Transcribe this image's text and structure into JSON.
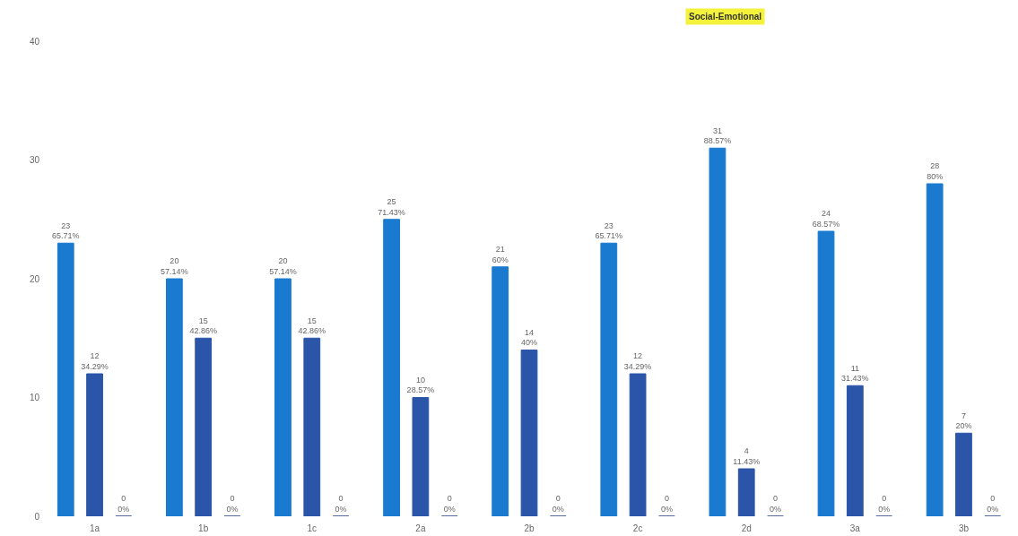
{
  "chart_data": {
    "type": "bar",
    "title": "Social-Emotional",
    "categories": [
      "1a",
      "1b",
      "1c",
      "2a",
      "2b",
      "2c",
      "2d",
      "3a",
      "3b"
    ],
    "series": [
      {
        "color": "#1a7ad0",
        "values": [
          23,
          20,
          20,
          25,
          21,
          23,
          31,
          24,
          28
        ],
        "value_labels": [
          "23\n65.71%",
          "20\n57.14%",
          "20\n57.14%",
          "25\n71.43%",
          "21\n60%",
          "23\n65.71%",
          "31\n88.57%",
          "24\n68.57%",
          "28\n80%"
        ]
      },
      {
        "color": "#2b55a8",
        "values": [
          12,
          15,
          15,
          10,
          14,
          12,
          4,
          11,
          7
        ],
        "value_labels": [
          "12\n34.29%",
          "15\n42.86%",
          "15\n42.86%",
          "10\n28.57%",
          "14\n40%",
          "12\n34.29%",
          "4\n11.43%",
          "11\n31.43%",
          "7\n20%"
        ]
      },
      {
        "color": "#1f3d7a",
        "values": [
          0,
          0,
          0,
          0,
          0,
          0,
          0,
          0,
          0
        ],
        "value_labels": [
          "0\n0%",
          "0\n0%",
          "0\n0%",
          "0\n0%",
          "0\n0%",
          "0\n0%",
          "0\n0%",
          "0\n0%",
          "0\n0%"
        ]
      }
    ],
    "ylim": [
      0,
      40
    ],
    "yticks": [
      0,
      10,
      20,
      30,
      40
    ],
    "grid": false
  }
}
